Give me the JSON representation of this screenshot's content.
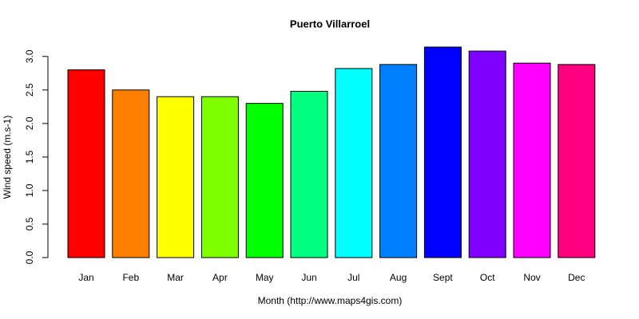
{
  "chart_data": {
    "type": "bar",
    "title": "Puerto Villarroel",
    "x_label": "Month (http://www.maps4gis.com)",
    "y_label": "Wind speed (m.s-1)",
    "categories": [
      "Jan",
      "Feb",
      "Mar",
      "Apr",
      "May",
      "Jun",
      "Jul",
      "Aug",
      "Sept",
      "Oct",
      "Nov",
      "Dec"
    ],
    "values": [
      2.8,
      2.5,
      2.4,
      2.4,
      2.3,
      2.48,
      2.82,
      2.88,
      3.14,
      3.08,
      2.9,
      2.88
    ],
    "colors": [
      "#FF0000",
      "#FF8000",
      "#FFFF00",
      "#80FF00",
      "#00FF00",
      "#00FF80",
      "#00FFFF",
      "#0080FF",
      "#0000FF",
      "#8000FF",
      "#FF00FF",
      "#FF0080"
    ],
    "ylim": [
      0,
      3.14
    ],
    "yticks": [
      {
        "value": 0,
        "label": "0.0"
      },
      0.5,
      {
        "value": 1,
        "label": "1.0"
      },
      1.5,
      {
        "value": 2,
        "label": "2.0"
      },
      2.5,
      {
        "value": 3,
        "label": "3.0"
      }
    ]
  }
}
